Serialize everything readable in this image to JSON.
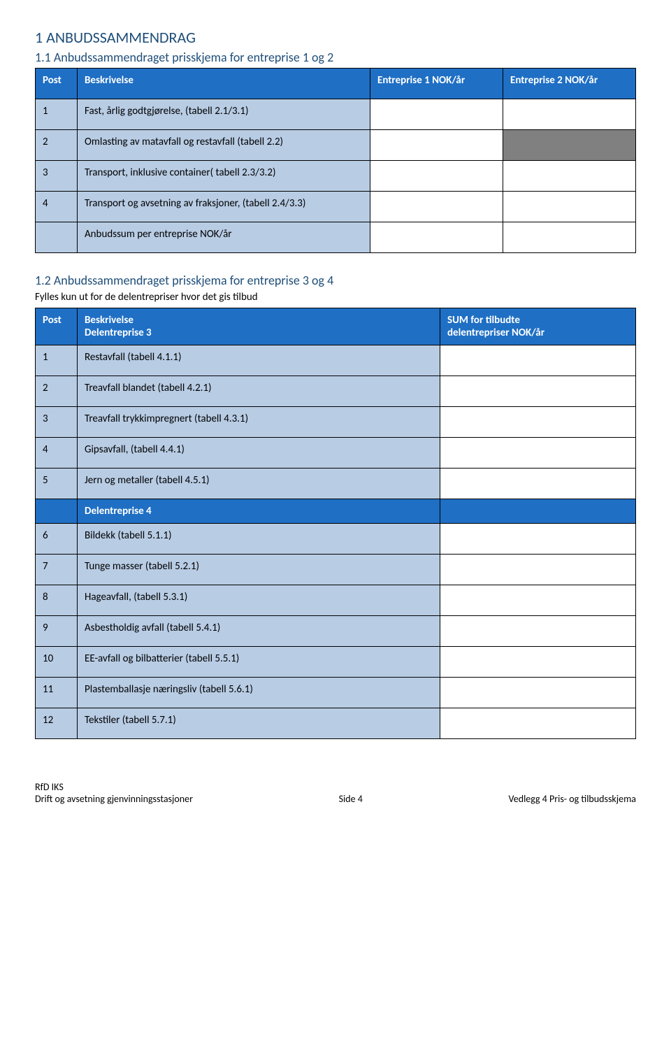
{
  "heading1": "1   ANBUDSSAMMENDRAG",
  "heading11": "1.1   Anbudssammendraget prisskjema for entreprise 1 og 2",
  "table1": {
    "hdr_post": "Post",
    "hdr_desc": "Beskrivelse",
    "hdr_e1": "Entreprise 1 NOK/år",
    "hdr_e2": "Entreprise 2 NOK/år",
    "rows": [
      {
        "p": "1",
        "d": "Fast, årlig godtgjørelse, (tabell 2.1/3.1)",
        "grey": false
      },
      {
        "p": "2",
        "d": "Omlasting av matavfall og restavfall (tabell 2.2)",
        "grey": true
      },
      {
        "p": "3",
        "d": "Transport, inklusive container( tabell 2.3/3.2)",
        "grey": false
      },
      {
        "p": "4",
        "d": "Transport og avsetning av fraksjoner, (tabell 2.4/3.3)",
        "grey": false
      },
      {
        "p": "",
        "d": "Anbudssum per entreprise NOK/år",
        "grey": false
      }
    ]
  },
  "heading12": "1.2   Anbudssammendraget prisskjema for entreprise 3 og 4",
  "subtext12": "Fylles kun ut for de delentrepriser hvor det gis tilbud",
  "table2": {
    "hdr_post": "Post",
    "hdr_desc_a": "Beskrivelse",
    "hdr_desc_b": "Delentreprise 3",
    "hdr_val_a": "SUM for tilbudte",
    "hdr_val_b": "delentrepriser NOK/år",
    "rowsA": [
      {
        "p": "1",
        "d": "Restavfall (tabell 4.1.1)"
      },
      {
        "p": "2",
        "d": "Treavfall blandet (tabell 4.2.1)"
      },
      {
        "p": "3",
        "d": "Treavfall trykkimpregnert (tabell 4.3.1)"
      },
      {
        "p": "4",
        "d": "Gipsavfall, (tabell 4.4.1)"
      },
      {
        "p": "5",
        "d": "Jern og metaller (tabell 4.5.1)"
      }
    ],
    "hdr2": "Delentreprise 4",
    "rowsB": [
      {
        "p": "6",
        "d": "Bildekk (tabell 5.1.1)"
      },
      {
        "p": "7",
        "d": "Tunge masser (tabell 5.2.1)"
      },
      {
        "p": "8",
        "d": "Hageavfall, (tabell 5.3.1)"
      },
      {
        "p": "9",
        "d": "Asbestholdig avfall (tabell 5.4.1)"
      },
      {
        "p": "10",
        "d": "EE-avfall og bilbatterier (tabell 5.5.1)"
      },
      {
        "p": "11",
        "d": "Plastemballasje næringsliv (tabell 5.6.1)"
      },
      {
        "p": "12",
        "d": "Tekstiler (tabell 5.7.1)"
      }
    ]
  },
  "footer": {
    "left1": "RfD IKS",
    "left2": "Drift og avsetning gjenvinningsstasjoner",
    "center": "Side 4",
    "right": "Vedlegg 4 Pris- og tilbudsskjema"
  }
}
